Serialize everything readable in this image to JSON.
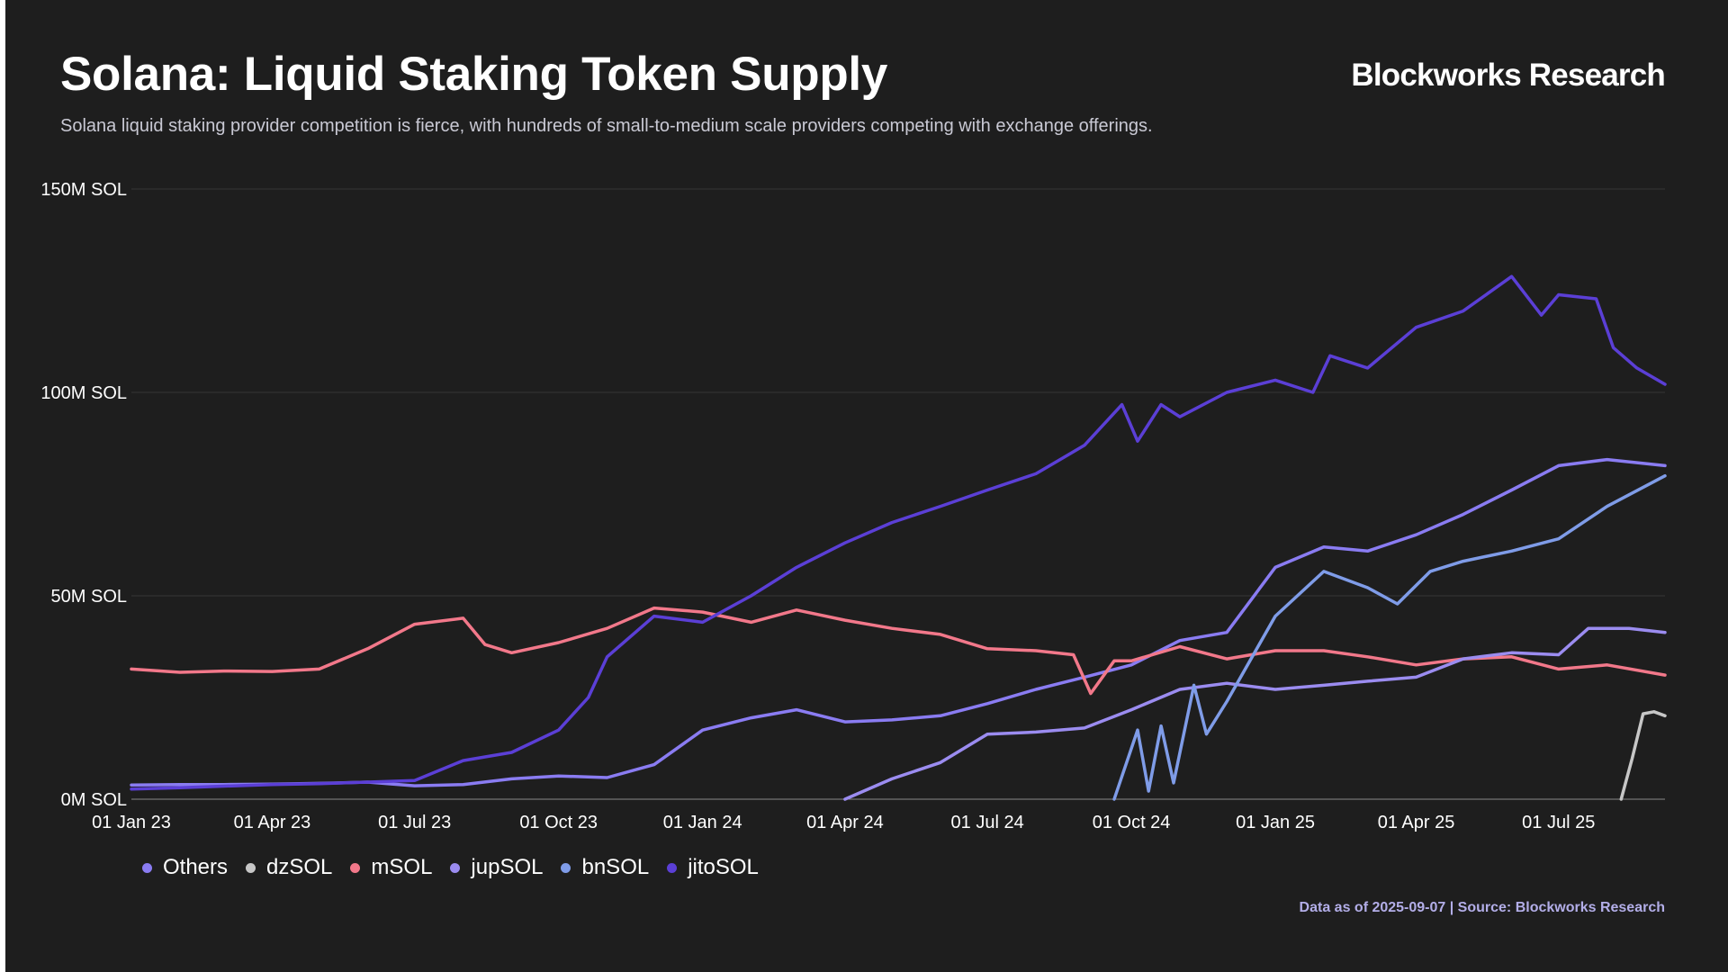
{
  "header": {
    "title": "Solana: Liquid Staking Token Supply",
    "subtitle": "Solana liquid staking provider competition is fierce, with hundreds of small-to-medium scale providers competing with exchange offerings.",
    "brand": "Blockworks Research"
  },
  "footer": {
    "note": "Data as of 2025-09-07 | Source: Blockworks Research"
  },
  "colors": {
    "background": "#1e1e1e",
    "gridline": "#2f2f2f",
    "axis_line": "#8a8a8a"
  },
  "chart_data": {
    "type": "line",
    "title": "Solana: Liquid Staking Token Supply",
    "xlabel": "",
    "ylabel": "",
    "x_range": [
      "2023-01-01",
      "2025-09-07"
    ],
    "ylim": [
      0,
      150
    ],
    "y_ticks": [
      {
        "value": 0,
        "label": "0M SOL"
      },
      {
        "value": 50,
        "label": "50M SOL"
      },
      {
        "value": 100,
        "label": "100M SOL"
      },
      {
        "value": 150,
        "label": "150M SOL"
      }
    ],
    "x_ticks": [
      {
        "date": "2023-01-01",
        "label": "01 Jan 23"
      },
      {
        "date": "2023-04-01",
        "label": "01 Apr 23"
      },
      {
        "date": "2023-07-01",
        "label": "01 Jul 23"
      },
      {
        "date": "2023-10-01",
        "label": "01 Oct 23"
      },
      {
        "date": "2024-01-01",
        "label": "01 Jan 24"
      },
      {
        "date": "2024-04-01",
        "label": "01 Apr 24"
      },
      {
        "date": "2024-07-01",
        "label": "01 Jul 24"
      },
      {
        "date": "2024-10-01",
        "label": "01 Oct 24"
      },
      {
        "date": "2025-01-01",
        "label": "01 Jan 25"
      },
      {
        "date": "2025-04-01",
        "label": "01 Apr 25"
      },
      {
        "date": "2025-07-01",
        "label": "01 Jul 25"
      }
    ],
    "grid": true,
    "legend_position": "bottom-left",
    "series": [
      {
        "name": "Others",
        "color": "#8a7cf2",
        "points": [
          [
            "2023-01-01",
            3.5
          ],
          [
            "2023-02-01",
            3.6
          ],
          [
            "2023-03-01",
            3.6
          ],
          [
            "2023-04-01",
            3.7
          ],
          [
            "2023-05-01",
            3.9
          ],
          [
            "2023-06-01",
            4.2
          ],
          [
            "2023-07-01",
            3.3
          ],
          [
            "2023-08-01",
            3.6
          ],
          [
            "2023-09-01",
            5.0
          ],
          [
            "2023-10-01",
            5.7
          ],
          [
            "2023-11-01",
            5.3
          ],
          [
            "2023-12-01",
            8.5
          ],
          [
            "2024-01-01",
            17.0
          ],
          [
            "2024-02-01",
            20.0
          ],
          [
            "2024-03-01",
            22.0
          ],
          [
            "2024-04-01",
            19.0
          ],
          [
            "2024-05-01",
            19.5
          ],
          [
            "2024-06-01",
            20.5
          ],
          [
            "2024-07-01",
            23.5
          ],
          [
            "2024-08-01",
            27.0
          ],
          [
            "2024-09-01",
            30.0
          ],
          [
            "2024-10-01",
            33.0
          ],
          [
            "2024-11-01",
            39.0
          ],
          [
            "2024-12-01",
            41.0
          ],
          [
            "2025-01-01",
            57.0
          ],
          [
            "2025-02-01",
            62.0
          ],
          [
            "2025-03-01",
            61.0
          ],
          [
            "2025-04-01",
            65.0
          ],
          [
            "2025-05-01",
            70.0
          ],
          [
            "2025-06-01",
            76.0
          ],
          [
            "2025-07-01",
            82.0
          ],
          [
            "2025-08-01",
            83.5
          ],
          [
            "2025-09-07",
            82.0
          ]
        ]
      },
      {
        "name": "dzSOL",
        "color": "#c7c7c7",
        "points": [
          [
            "2025-08-10",
            0.0
          ],
          [
            "2025-08-17",
            10.0
          ],
          [
            "2025-08-24",
            21.0
          ],
          [
            "2025-08-31",
            21.5
          ],
          [
            "2025-09-07",
            20.5
          ]
        ]
      },
      {
        "name": "mSOL",
        "color": "#f2788a",
        "points": [
          [
            "2023-01-01",
            32.0
          ],
          [
            "2023-02-01",
            31.2
          ],
          [
            "2023-03-01",
            31.5
          ],
          [
            "2023-04-01",
            31.4
          ],
          [
            "2023-05-01",
            32.0
          ],
          [
            "2023-06-01",
            37.0
          ],
          [
            "2023-07-01",
            43.0
          ],
          [
            "2023-08-01",
            44.5
          ],
          [
            "2023-08-15",
            38.0
          ],
          [
            "2023-09-01",
            36.0
          ],
          [
            "2023-10-01",
            38.5
          ],
          [
            "2023-11-01",
            42.0
          ],
          [
            "2023-12-01",
            47.0
          ],
          [
            "2024-01-01",
            46.0
          ],
          [
            "2024-02-01",
            43.5
          ],
          [
            "2024-03-01",
            46.5
          ],
          [
            "2024-04-01",
            44.0
          ],
          [
            "2024-05-01",
            42.0
          ],
          [
            "2024-06-01",
            40.5
          ],
          [
            "2024-07-01",
            37.0
          ],
          [
            "2024-08-01",
            36.5
          ],
          [
            "2024-08-25",
            35.5
          ],
          [
            "2024-09-05",
            26.0
          ],
          [
            "2024-09-20",
            34.0
          ],
          [
            "2024-10-01",
            34.0
          ],
          [
            "2024-11-01",
            37.5
          ],
          [
            "2024-12-01",
            34.5
          ],
          [
            "2025-01-01",
            36.5
          ],
          [
            "2025-02-01",
            36.5
          ],
          [
            "2025-03-01",
            35.0
          ],
          [
            "2025-04-01",
            33.0
          ],
          [
            "2025-05-01",
            34.5
          ],
          [
            "2025-06-01",
            35.0
          ],
          [
            "2025-07-01",
            32.0
          ],
          [
            "2025-08-01",
            33.0
          ],
          [
            "2025-09-07",
            30.5
          ]
        ]
      },
      {
        "name": "jupSOL",
        "color": "#9b8cf0",
        "points": [
          [
            "2024-04-01",
            0.0
          ],
          [
            "2024-05-01",
            5.0
          ],
          [
            "2024-06-01",
            9.0
          ],
          [
            "2024-07-01",
            16.0
          ],
          [
            "2024-08-01",
            16.5
          ],
          [
            "2024-09-01",
            17.5
          ],
          [
            "2024-10-01",
            22.0
          ],
          [
            "2024-11-01",
            27.0
          ],
          [
            "2024-12-01",
            28.5
          ],
          [
            "2025-01-01",
            27.0
          ],
          [
            "2025-02-01",
            28.0
          ],
          [
            "2025-03-01",
            29.0
          ],
          [
            "2025-04-01",
            30.0
          ],
          [
            "2025-05-01",
            34.5
          ],
          [
            "2025-06-01",
            36.0
          ],
          [
            "2025-07-01",
            35.5
          ],
          [
            "2025-07-20",
            42.0
          ],
          [
            "2025-08-15",
            42.0
          ],
          [
            "2025-09-07",
            41.0
          ]
        ]
      },
      {
        "name": "bnSOL",
        "color": "#7f9ce8",
        "points": [
          [
            "2024-09-20",
            0.0
          ],
          [
            "2024-10-05",
            17.0
          ],
          [
            "2024-10-12",
            2.0
          ],
          [
            "2024-10-20",
            18.0
          ],
          [
            "2024-10-28",
            4.0
          ],
          [
            "2024-11-10",
            28.0
          ],
          [
            "2024-11-18",
            16.0
          ],
          [
            "2024-12-01",
            24.0
          ],
          [
            "2025-01-01",
            45.0
          ],
          [
            "2025-02-01",
            56.0
          ],
          [
            "2025-03-01",
            52.0
          ],
          [
            "2025-03-20",
            48.0
          ],
          [
            "2025-04-10",
            56.0
          ],
          [
            "2025-05-01",
            58.5
          ],
          [
            "2025-06-01",
            61.0
          ],
          [
            "2025-07-01",
            64.0
          ],
          [
            "2025-08-01",
            72.0
          ],
          [
            "2025-09-07",
            79.5
          ]
        ]
      },
      {
        "name": "jitoSOL",
        "color": "#5b3fd6",
        "points": [
          [
            "2023-01-01",
            2.5
          ],
          [
            "2023-02-01",
            2.8
          ],
          [
            "2023-03-01",
            3.2
          ],
          [
            "2023-04-01",
            3.6
          ],
          [
            "2023-05-01",
            3.8
          ],
          [
            "2023-06-01",
            4.2
          ],
          [
            "2023-07-01",
            4.6
          ],
          [
            "2023-08-01",
            9.5
          ],
          [
            "2023-09-01",
            11.5
          ],
          [
            "2023-10-01",
            17.0
          ],
          [
            "2023-10-20",
            25.0
          ],
          [
            "2023-11-01",
            35.0
          ],
          [
            "2023-12-01",
            45.0
          ],
          [
            "2024-01-01",
            43.5
          ],
          [
            "2024-02-01",
            50.0
          ],
          [
            "2024-03-01",
            57.0
          ],
          [
            "2024-04-01",
            63.0
          ],
          [
            "2024-05-01",
            68.0
          ],
          [
            "2024-06-01",
            72.0
          ],
          [
            "2024-07-01",
            76.0
          ],
          [
            "2024-08-01",
            80.0
          ],
          [
            "2024-09-01",
            87.0
          ],
          [
            "2024-09-25",
            97.0
          ],
          [
            "2024-10-05",
            88.0
          ],
          [
            "2024-10-20",
            97.0
          ],
          [
            "2024-11-01",
            94.0
          ],
          [
            "2024-12-01",
            100.0
          ],
          [
            "2025-01-01",
            103.0
          ],
          [
            "2025-01-25",
            100.0
          ],
          [
            "2025-02-05",
            109.0
          ],
          [
            "2025-03-01",
            106.0
          ],
          [
            "2025-04-01",
            116.0
          ],
          [
            "2025-05-01",
            120.0
          ],
          [
            "2025-06-01",
            128.5
          ],
          [
            "2025-06-20",
            119.0
          ],
          [
            "2025-07-01",
            124.0
          ],
          [
            "2025-07-25",
            123.0
          ],
          [
            "2025-08-05",
            111.0
          ],
          [
            "2025-08-20",
            106.0
          ],
          [
            "2025-09-07",
            102.0
          ]
        ]
      }
    ]
  }
}
